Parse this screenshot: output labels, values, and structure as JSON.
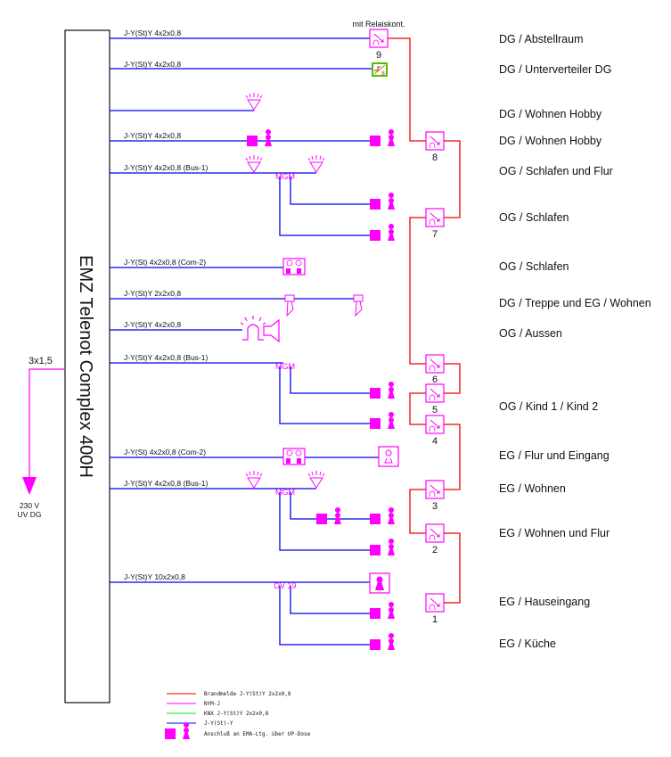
{
  "panel": {
    "title": "EMZ Telenot Complex 400H"
  },
  "supply": {
    "cable": "3x1,5",
    "voltage": "230 V",
    "source": "UV DG"
  },
  "relay_note": "mit Relaiskont.",
  "cables": {
    "c1": "J-Y(St)Y 4x2x0,8",
    "c2": "J-Y(St)Y 4x2x0,8",
    "c4": "J-Y(St)Y 4x2x0,8",
    "c5": "J-Y(St)Y 4x2x0,8 (Bus-1)",
    "c7": "J-Y(St) 4x2x0,8 (Com-2)",
    "c8": "J-Y(St)Y 2x2x0,8",
    "c9": "J-Y(St)Y 4x2x0,8",
    "c10": "J-Y(St)Y 4x2x0,8 (Bus-1)",
    "c12": "J-Y(St) 4x2x0,8 (Com-2)",
    "c13": "J-Y(St)Y 4x2x0,8 (Bus-1)",
    "c15": "J-Y(St)Y 10x2x0,8"
  },
  "modules": {
    "mgm1": "MGM",
    "mgm2": "MGM",
    "mgm3": "MGM",
    "dv": "DV 19"
  },
  "unterverteiler_number": "8",
  "fire_alarms": [
    "9",
    "8",
    "7",
    "6",
    "5",
    "4",
    "3",
    "2",
    "1"
  ],
  "rooms": [
    "DG / Abstellraum",
    "DG / Unterverteiler DG",
    "DG / Wohnen Hobby",
    "DG / Wohnen Hobby",
    "OG / Schlafen und Flur",
    "OG / Schlafen",
    "OG / Schlafen",
    "DG / Treppe und EG / Wohnen",
    "OG / Aussen",
    "OG / Kind 1 / Kind 2",
    "EG / Flur und Eingang",
    "EG / Wohnen",
    "EG / Wohnen und Flur",
    "EG / Hauseingang",
    "EG / Küche"
  ],
  "legend": [
    {
      "label": "Brandmelde J-Y(St)Y 2x2x0,8",
      "color": "#ee0000"
    },
    {
      "label": "NYM-J",
      "color": "#ff00ff"
    },
    {
      "label": "KNX J-Y(St)Y 2x2x0,8",
      "color": "#00ee00"
    },
    {
      "label": "J-Y(St)-Y",
      "color": "#0000ee"
    },
    {
      "label": "Anschluß an EMA-Ltg. über UP-Dose",
      "color": "#ff00ff"
    }
  ]
}
